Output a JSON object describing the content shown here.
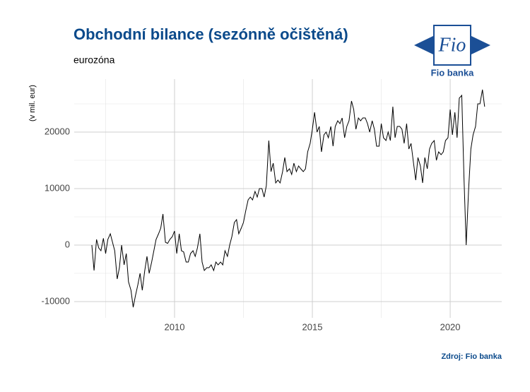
{
  "chart_data": {
    "type": "line",
    "title": "Obchodní bilance (sezónně očištěná)",
    "subtitle": "eurozóna",
    "y_label": "(v mil. eur)",
    "source": "Zdroj: Fio banka",
    "logo_text": "Fio",
    "logo_caption": "Fio banka",
    "xlim": [
      2006.36,
      2021.87
    ],
    "ylim": [
      -12875,
      29375
    ],
    "xticks": [
      2010,
      2015,
      2020
    ],
    "yticks": [
      -10000,
      0,
      10000,
      20000
    ],
    "x_minor_ticks": [
      2007.5,
      2012.5,
      2017.5
    ],
    "y_minor_ticks": [
      -5000,
      5000,
      15000,
      25000
    ],
    "grid": true,
    "color": "#000000",
    "x": [
      2007,
      2007.08,
      2007.17,
      2007.25,
      2007.33,
      2007.42,
      2007.5,
      2007.58,
      2007.67,
      2007.75,
      2007.83,
      2007.92,
      2008,
      2008.08,
      2008.17,
      2008.25,
      2008.33,
      2008.42,
      2008.5,
      2008.58,
      2008.67,
      2008.75,
      2008.83,
      2008.92,
      2009,
      2009.08,
      2009.17,
      2009.25,
      2009.33,
      2009.42,
      2009.5,
      2009.58,
      2009.67,
      2009.75,
      2009.83,
      2009.92,
      2010,
      2010.08,
      2010.17,
      2010.25,
      2010.33,
      2010.42,
      2010.5,
      2010.58,
      2010.67,
      2010.75,
      2010.83,
      2010.92,
      2011,
      2011.08,
      2011.17,
      2011.25,
      2011.33,
      2011.42,
      2011.5,
      2011.58,
      2011.67,
      2011.75,
      2011.83,
      2011.92,
      2012,
      2012.08,
      2012.17,
      2012.25,
      2012.33,
      2012.42,
      2012.5,
      2012.58,
      2012.67,
      2012.75,
      2012.83,
      2012.92,
      2013,
      2013.08,
      2013.17,
      2013.25,
      2013.33,
      2013.42,
      2013.5,
      2013.58,
      2013.67,
      2013.75,
      2013.83,
      2013.92,
      2014,
      2014.08,
      2014.17,
      2014.25,
      2014.33,
      2014.42,
      2014.5,
      2014.58,
      2014.67,
      2014.75,
      2014.83,
      2014.92,
      2015,
      2015.08,
      2015.17,
      2015.25,
      2015.33,
      2015.42,
      2015.5,
      2015.58,
      2015.67,
      2015.75,
      2015.83,
      2015.92,
      2016,
      2016.08,
      2016.17,
      2016.25,
      2016.33,
      2016.42,
      2016.5,
      2016.58,
      2016.67,
      2016.75,
      2016.83,
      2016.92,
      2017,
      2017.08,
      2017.17,
      2017.25,
      2017.33,
      2017.42,
      2017.5,
      2017.58,
      2017.67,
      2017.75,
      2017.83,
      2017.92,
      2018,
      2018.08,
      2018.17,
      2018.25,
      2018.33,
      2018.42,
      2018.5,
      2018.58,
      2018.67,
      2018.75,
      2018.83,
      2018.92,
      2019,
      2019.08,
      2019.17,
      2019.25,
      2019.33,
      2019.42,
      2019.5,
      2019.58,
      2019.67,
      2019.75,
      2019.83,
      2019.92,
      2020,
      2020.08,
      2020.17,
      2020.25,
      2020.33,
      2020.42,
      2020.5,
      2020.58,
      2020.67,
      2020.75,
      2020.83,
      2020.92,
      2021,
      2021.08,
      2021.17,
      2021.25
    ],
    "values": [
      0,
      -4500,
      1000,
      -500,
      -1000,
      1200,
      -1500,
      1000,
      2000,
      500,
      -1000,
      -6000,
      -4000,
      0,
      -3500,
      -1500,
      -6500,
      -8000,
      -11000,
      -9000,
      -7000,
      -5000,
      -8000,
      -4500,
      -2000,
      -5000,
      -3000,
      -1000,
      1000,
      2000,
      3000,
      5500,
      500,
      300,
      1000,
      1500,
      2500,
      -1500,
      2000,
      -1000,
      -1200,
      -3000,
      -3000,
      -1500,
      -1000,
      -2000,
      -500,
      2000,
      -3000,
      -4500,
      -4000,
      -4000,
      -3500,
      -4500,
      -3000,
      -3500,
      -3000,
      -3500,
      -1000,
      -2000,
      0,
      1500,
      4000,
      4500,
      2000,
      3000,
      4000,
      6000,
      8000,
      8500,
      8000,
      9500,
      8500,
      10000,
      10000,
      8500,
      10500,
      18500,
      13000,
      14500,
      11000,
      11500,
      11000,
      13000,
      15500,
      13000,
      13500,
      12500,
      14500,
      13000,
      14000,
      13500,
      13000,
      13500,
      16500,
      18000,
      20500,
      23500,
      20000,
      21000,
      16500,
      19500,
      20000,
      19000,
      21000,
      17500,
      21000,
      22000,
      21500,
      22500,
      19000,
      21000,
      22000,
      25500,
      24000,
      20500,
      22500,
      22000,
      22500,
      22500,
      21500,
      20000,
      22000,
      20500,
      17500,
      17500,
      21500,
      19000,
      18500,
      20000,
      18500,
      24500,
      19000,
      21000,
      21000,
      20500,
      18000,
      21500,
      17000,
      18000,
      14500,
      11500,
      15500,
      14000,
      11000,
      15500,
      13500,
      17000,
      18000,
      18500,
      15000,
      16500,
      16000,
      16500,
      18500,
      19000,
      24000,
      19500,
      23500,
      19000,
      26000,
      26500,
      12000,
      0,
      10000,
      17000,
      19500,
      21000,
      25000,
      25000,
      27500,
      24500
    ]
  }
}
